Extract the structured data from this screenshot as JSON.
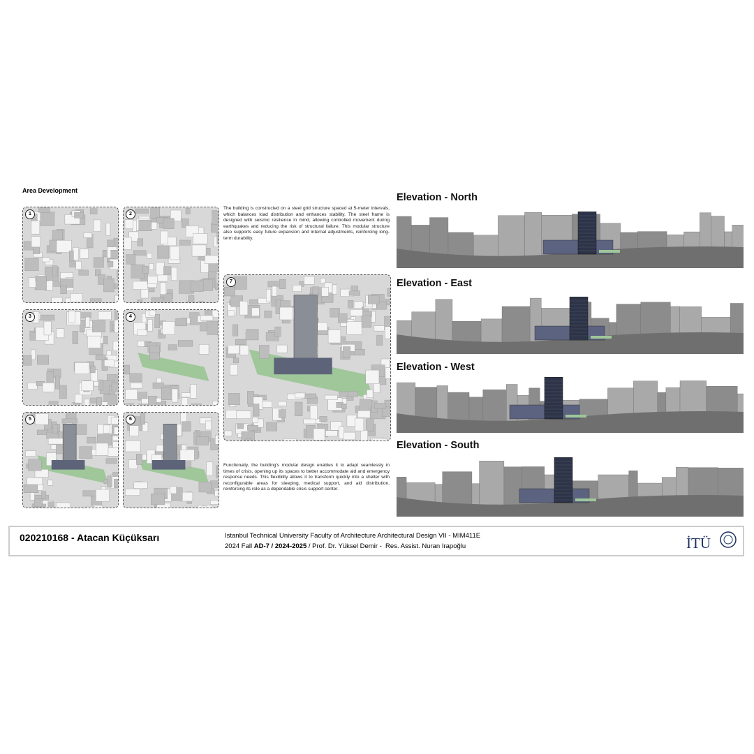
{
  "header": {
    "title": "Area Development"
  },
  "panels": [
    {
      "number": "1"
    },
    {
      "number": "2"
    },
    {
      "number": "3"
    },
    {
      "number": "4"
    },
    {
      "number": "5"
    },
    {
      "number": "6"
    },
    {
      "number": "7"
    }
  ],
  "paragraphs": [
    "The building is constructed on a steel grid structure spaced at 5-meter intervals, which balances load distribution and enhances stability. The steel frame is designed with seismic resilience in mind, allowing controlled movement during earthquakes and reducing the risk of structural failure. This modular structure also supports easy future expansion and internal adjustments, reinforcing long-term durability.",
    "Functionally, the building's modular design enables it to adapt seamlessly in times of crisis, opening up its spaces to better accommodate aid and emergency response needs. This flexibility allows it to transform quickly into a shelter with reconfigurable areas for sleeping, medical support, and aid distribution, reinforcing its role as a dependable crisis support center."
  ],
  "elevations": [
    {
      "title": "Elevation - North"
    },
    {
      "title": "Elevation - East"
    },
    {
      "title": "Elevation - West"
    },
    {
      "title": "Elevation - South"
    }
  ],
  "footer": {
    "student": "020210168 - Atacan Küçüksarı",
    "line1": "Istanbul Technical University Faculty of Architecture Architectural Design VII - MIM411E",
    "line2_start": "2024 Fall",
    "line2_bold": "AD-7 / 2024-2025",
    "line2_end": "/ Prof. Dr. Yüksel Demir -  Res. Assist. Nuran Irapoğlu",
    "logo": "İTÜ"
  }
}
